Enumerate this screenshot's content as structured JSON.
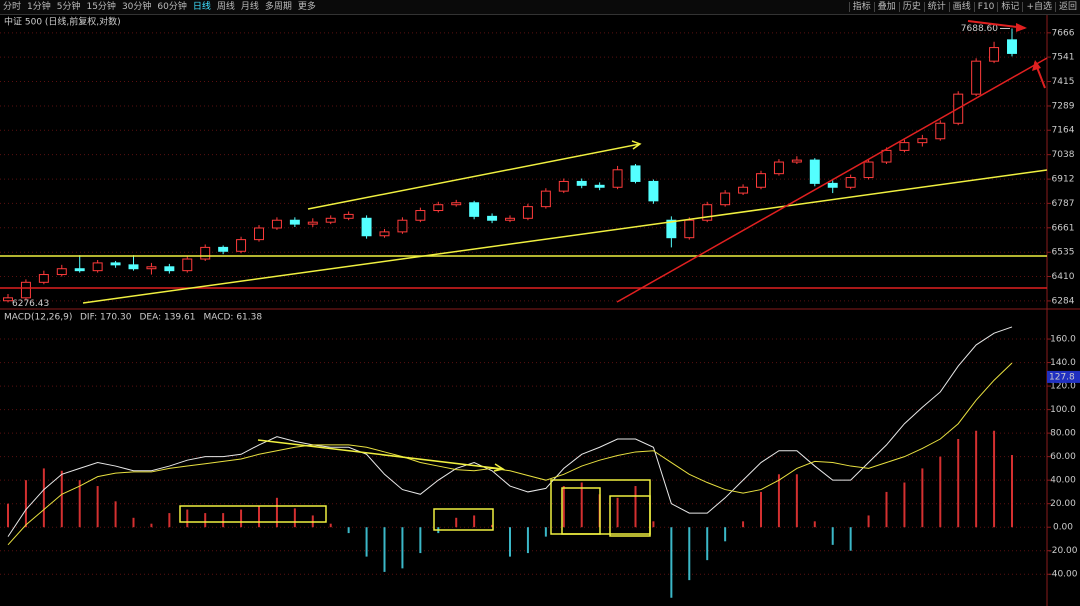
{
  "toolbar": {
    "tabs": [
      "分时",
      "1分钟",
      "5分钟",
      "15分钟",
      "30分钟",
      "60分钟",
      "日线",
      "周线",
      "月线",
      "多周期",
      "更多"
    ],
    "active_tab": 6,
    "tools": [
      "指标",
      "叠加",
      "历史",
      "统计",
      "画线",
      "F10",
      "标记",
      "+自选",
      "返回"
    ]
  },
  "chart_data": [
    {
      "type": "candlestick",
      "title": "中证 500 (日线,前复权,对数)",
      "open": [
        6285,
        6300,
        6380,
        6420,
        6450,
        6440,
        6480,
        6470,
        6450,
        6460,
        6440,
        6500,
        6560,
        6540,
        6600,
        6660,
        6700,
        6680,
        6690,
        6710,
        6710,
        6620,
        6640,
        6700,
        6750,
        6780,
        6790,
        6720,
        6700,
        6710,
        6770,
        6850,
        6900,
        6880,
        6870,
        6980,
        6900,
        6700,
        6610,
        6700,
        6780,
        6840,
        6870,
        6940,
        7000,
        7010,
        6890,
        6870,
        6920,
        7000,
        7060,
        7100,
        7120,
        7200,
        7350,
        7520,
        7630
      ],
      "high": [
        6320,
        6395,
        6440,
        6470,
        6520,
        6495,
        6490,
        6520,
        6480,
        6475,
        6515,
        6575,
        6570,
        6615,
        6675,
        6715,
        6715,
        6710,
        6725,
        6745,
        6725,
        6655,
        6715,
        6765,
        6795,
        6805,
        6800,
        6735,
        6725,
        6785,
        6865,
        6915,
        6915,
        6895,
        6980,
        6990,
        6910,
        6720,
        6715,
        6795,
        6855,
        6885,
        6955,
        7015,
        7030,
        7020,
        6905,
        6935,
        7015,
        7075,
        7115,
        7140,
        7215,
        7365,
        7535,
        7620,
        7688.6
      ],
      "low": [
        6276.43,
        6290,
        6370,
        6410,
        6430,
        6430,
        6455,
        6440,
        6420,
        6425,
        6430,
        6490,
        6525,
        6530,
        6590,
        6650,
        6665,
        6665,
        6680,
        6700,
        6605,
        6610,
        6630,
        6690,
        6740,
        6770,
        6705,
        6685,
        6690,
        6700,
        6760,
        6840,
        6865,
        6855,
        6860,
        6890,
        6785,
        6560,
        6600,
        6690,
        6770,
        6830,
        6860,
        6930,
        6990,
        6875,
        6840,
        6860,
        6910,
        6990,
        7050,
        7080,
        7110,
        7190,
        7340,
        7510,
        7545
      ],
      "close": [
        6300,
        6380,
        6420,
        6450,
        6440,
        6480,
        6470,
        6450,
        6460,
        6440,
        6500,
        6560,
        6540,
        6600,
        6660,
        6700,
        6680,
        6690,
        6710,
        6730,
        6620,
        6640,
        6700,
        6750,
        6780,
        6790,
        6720,
        6700,
        6710,
        6770,
        6850,
        6900,
        6880,
        6870,
        6960,
        6900,
        6800,
        6610,
        6700,
        6780,
        6840,
        6870,
        6940,
        7000,
        7010,
        6890,
        6870,
        6920,
        7000,
        7060,
        7100,
        7120,
        7200,
        7350,
        7520,
        7590,
        7560
      ],
      "up_color": "#ff3b3b",
      "down_color": "#54ffff",
      "ylim": [
        6263,
        7758
      ],
      "yticks": [
        6284,
        6410,
        6535,
        6661,
        6787,
        6912,
        7038,
        7164,
        7289,
        7415,
        7541,
        7666
      ],
      "grid": true,
      "high_label": {
        "value": 7688.6,
        "label": "7688.60"
      },
      "low_label": {
        "value": 6276.43,
        "label": "6276.43"
      }
    },
    {
      "type": "macd",
      "title": "MACD(12,26,9)",
      "histogram": {
        "name": "MACD: 61.38",
        "color": "#ff33ff",
        "up_color": "#d43030",
        "down_color": "#3bb8c8",
        "values": [
          20,
          40,
          50,
          48,
          40,
          35,
          22,
          8,
          3,
          12,
          15,
          12,
          12,
          15,
          18,
          25,
          16,
          10,
          3,
          -5,
          -25,
          -38,
          -35,
          -22,
          -5,
          8,
          10,
          2,
          -25,
          -22,
          -8,
          35,
          38,
          28,
          25,
          35,
          5,
          -60,
          -45,
          -28,
          -12,
          5,
          30,
          45,
          45,
          5,
          -15,
          -20,
          10,
          30,
          38,
          50,
          60,
          75,
          82,
          82,
          61.38
        ]
      },
      "series": [
        {
          "name": "DIF: 170.30",
          "color": "#e8e8e8",
          "values": [
            -8,
            15,
            32,
            45,
            50,
            55,
            52,
            48,
            48,
            52,
            57,
            60,
            60,
            62,
            70,
            77,
            73,
            70,
            68,
            68,
            62,
            45,
            32,
            28,
            40,
            50,
            55,
            48,
            35,
            30,
            33,
            50,
            62,
            68,
            75,
            75,
            68,
            20,
            12,
            12,
            25,
            40,
            55,
            65,
            65,
            52,
            40,
            40,
            55,
            70,
            88,
            102,
            115,
            137,
            155,
            165,
            170.3
          ]
        },
        {
          "name": "DEA: 139.61",
          "color": "#e8e040",
          "values": [
            -15,
            2,
            15,
            28,
            35,
            43,
            46,
            47,
            47,
            50,
            52,
            54,
            56,
            58,
            62,
            65,
            68,
            70,
            70,
            70,
            68,
            64,
            60,
            55,
            52,
            49,
            48,
            50,
            48,
            44,
            40,
            45,
            52,
            57,
            61,
            64,
            65,
            55,
            45,
            38,
            32,
            29,
            32,
            40,
            50,
            56,
            55,
            52,
            50,
            55,
            60,
            67,
            75,
            88,
            108,
            125,
            139.61
          ]
        }
      ],
      "marker_value": 127.8,
      "ylim": [
        -67,
        183
      ],
      "yticks": [
        {
          "value": -40,
          "label": "-40.00"
        },
        {
          "value": -20,
          "label": "-20.00"
        },
        {
          "value": 0,
          "label": "0.00"
        },
        {
          "value": 20,
          "label": "20.00"
        },
        {
          "value": 40,
          "label": "40.00"
        },
        {
          "value": 60,
          "label": "60.00"
        },
        {
          "value": 80,
          "label": "80.00"
        },
        {
          "value": 100,
          "label": "100.0"
        },
        {
          "value": 120,
          "label": "120.0"
        },
        {
          "value": 140,
          "label": "140.0"
        },
        {
          "value": 160,
          "label": "160.0"
        }
      ],
      "grid": true
    }
  ]
}
